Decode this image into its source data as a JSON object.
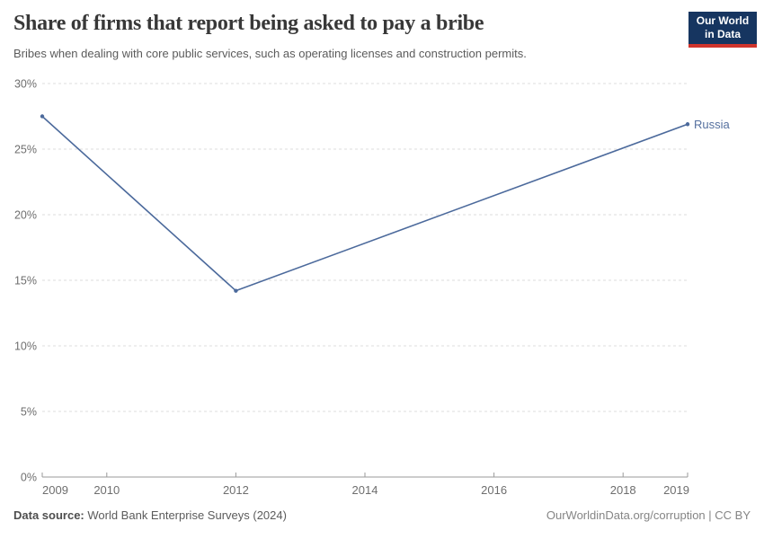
{
  "header": {
    "title": "Share of firms that report being asked to pay a bribe",
    "subtitle": "Bribes when dealing with core public services, such as operating licenses and construction permits.",
    "logo": {
      "line1": "Our World",
      "line2": "in Data"
    }
  },
  "footer": {
    "source_label": "Data source:",
    "source_value": " World Bank Enterprise Surveys (2024)",
    "right_text": "OurWorldinData.org/corruption | CC BY"
  },
  "colors": {
    "line": "#4c6a9c",
    "series_label": "#55709f",
    "grid": "#dcdcdc",
    "axis": "#9a9a9a",
    "tick_text": "#6e6e6e",
    "logo_navy": "#163560",
    "logo_red": "#d0342c"
  },
  "chart_data": {
    "type": "line",
    "title": "Share of firms that report being asked to pay a bribe",
    "subtitle": "Bribes when dealing with core public services, such as operating licenses and construction permits.",
    "series": [
      {
        "name": "Russia",
        "x": [
          2009,
          2012,
          2019
        ],
        "values": [
          27.5,
          14.2,
          26.9
        ]
      }
    ],
    "end_label": "Russia",
    "x_ticks": [
      2009,
      2010,
      2012,
      2014,
      2016,
      2018,
      2019
    ],
    "y_ticks": [
      0,
      5,
      10,
      15,
      20,
      25,
      30
    ],
    "y_tick_suffix": "%",
    "xlim": [
      2009,
      2019
    ],
    "ylim": [
      0,
      30
    ],
    "grid": "horizontal-dashed",
    "legend_position": "end-of-line"
  }
}
